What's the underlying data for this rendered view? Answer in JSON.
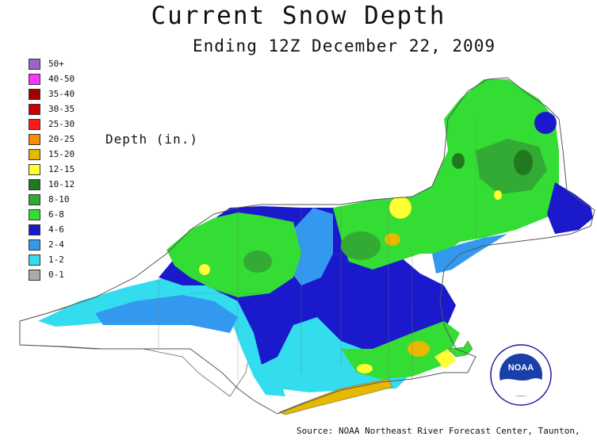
{
  "title": "Current Snow Depth",
  "subtitle": "Ending 12Z December 22, 2009",
  "legend_title": "Depth (in.)",
  "legend": [
    {
      "label": "50+",
      "color": "#9966cc"
    },
    {
      "label": "40-50",
      "color": "#ff33ff"
    },
    {
      "label": "35-40",
      "color": "#a00000"
    },
    {
      "label": "30-35",
      "color": "#d00000"
    },
    {
      "label": "25-30",
      "color": "#ff1a1a"
    },
    {
      "label": "20-25",
      "color": "#ff8c00"
    },
    {
      "label": "15-20",
      "color": "#e6b800"
    },
    {
      "label": "12-15",
      "color": "#ffff33"
    },
    {
      "label": "10-12",
      "color": "#1f7a1f"
    },
    {
      "label": "8-10",
      "color": "#33aa33"
    },
    {
      "label": "6-8",
      "color": "#33dd33"
    },
    {
      "label": "4-6",
      "color": "#1a1acc"
    },
    {
      "label": "2-4",
      "color": "#3399ee"
    },
    {
      "label": "1-2",
      "color": "#33ddee"
    },
    {
      "label": "0-1",
      "color": "#aaaaaa"
    }
  ],
  "logo_text": "NOAA",
  "source": "Source: NOAA Northeast River Forecast Center, Taunton,"
}
